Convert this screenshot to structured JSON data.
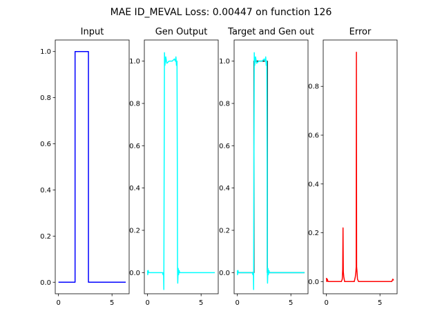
{
  "figure": {
    "suptitle": "MAE ID_MEVAL Loss: 0.00447 on function 126"
  },
  "chart_data": [
    {
      "type": "line",
      "title": "Input",
      "xlim": [
        -0.3,
        6.6
      ],
      "ylim": [
        -0.05,
        1.05
      ],
      "xticks": [
        0,
        5
      ],
      "yticks": [
        0.0,
        0.2,
        0.4,
        0.6,
        0.8,
        1.0
      ],
      "ytick_labels": [
        "0.0",
        "0.2",
        "0.4",
        "0.6",
        "0.8",
        "1.0"
      ],
      "series": [
        {
          "color": "#0000ff",
          "x": [
            0,
            1.55,
            1.55,
            2.8,
            2.8,
            6.28
          ],
          "y": [
            0,
            0,
            1,
            1,
            0,
            0
          ]
        }
      ]
    },
    {
      "type": "line",
      "title": "Gen Output",
      "xlim": [
        -0.3,
        6.6
      ],
      "ylim": [
        -0.1,
        1.1
      ],
      "xticks": [
        0,
        5
      ],
      "yticks": [
        0.0,
        0.2,
        0.4,
        0.6,
        0.8,
        1.0
      ],
      "ytick_labels": [
        "0.0",
        "0.2",
        "0.4",
        "0.6",
        "0.8",
        "1.0"
      ],
      "series": [
        {
          "color": "#00ffff",
          "x": [
            0,
            0.02,
            0.06,
            0.1,
            1.4,
            1.45,
            1.5,
            1.52,
            1.55,
            1.58,
            1.62,
            1.7,
            1.8,
            2.0,
            2.3,
            2.5,
            2.6,
            2.65,
            2.7,
            2.75,
            2.78,
            2.8,
            2.82,
            2.86,
            2.9,
            2.95,
            3.0,
            3.5,
            6.28
          ],
          "y": [
            0.01,
            -0.01,
            0.01,
            0.0,
            0.0,
            -0.01,
            0.0,
            -0.08,
            0.5,
            1.04,
            0.98,
            1.02,
            0.99,
            1.0,
            1.0,
            1.01,
            1.0,
            1.02,
            0.98,
            1.0,
            0.5,
            0.02,
            -0.05,
            0.02,
            -0.01,
            0.01,
            0.0,
            0.0,
            0.0
          ]
        }
      ]
    },
    {
      "type": "line",
      "title": "Target and Gen out",
      "xlim": [
        -0.3,
        6.6
      ],
      "ylim": [
        -0.1,
        1.1
      ],
      "xticks": [
        0,
        5
      ],
      "yticks": [
        0.0,
        0.2,
        0.4,
        0.6,
        0.8,
        1.0
      ],
      "ytick_labels": [
        "0.0",
        "0.2",
        "0.4",
        "0.6",
        "0.8",
        "1.0"
      ],
      "series": [
        {
          "color": "#000000",
          "x": [
            0,
            1.55,
            1.55,
            2.8,
            2.8,
            6.28
          ],
          "y": [
            0,
            0,
            1,
            1,
            0,
            0
          ]
        },
        {
          "color": "#00ffff",
          "x": [
            0,
            0.02,
            0.06,
            0.1,
            1.4,
            1.45,
            1.5,
            1.52,
            1.55,
            1.58,
            1.62,
            1.7,
            1.8,
            2.0,
            2.3,
            2.5,
            2.6,
            2.65,
            2.7,
            2.75,
            2.78,
            2.8,
            2.82,
            2.86,
            2.9,
            2.95,
            3.0,
            3.5,
            6.28
          ],
          "y": [
            0.01,
            -0.01,
            0.01,
            0.0,
            0.0,
            -0.01,
            0.0,
            -0.08,
            0.5,
            1.04,
            0.98,
            1.02,
            0.99,
            1.0,
            1.0,
            1.01,
            1.0,
            1.02,
            0.98,
            1.0,
            0.5,
            0.02,
            -0.05,
            0.02,
            -0.01,
            0.01,
            0.0,
            0.0,
            0.0
          ]
        }
      ]
    },
    {
      "type": "line",
      "title": "Error",
      "xlim": [
        -0.3,
        6.6
      ],
      "ylim": [
        -0.05,
        0.99
      ],
      "xticks": [
        0,
        5
      ],
      "yticks": [
        0.0,
        0.2,
        0.4,
        0.6,
        0.8
      ],
      "ytick_labels": [
        "0.0",
        "0.2",
        "0.4",
        "0.6",
        "0.8"
      ],
      "series": [
        {
          "color": "#ff0000",
          "x": [
            0,
            0.03,
            0.08,
            0.15,
            1.4,
            1.48,
            1.52,
            1.55,
            1.58,
            1.62,
            1.7,
            2.6,
            2.7,
            2.75,
            2.78,
            2.8,
            2.82,
            2.86,
            2.9,
            3.0,
            6.1,
            6.2,
            6.28
          ],
          "y": [
            0.015,
            0.0,
            0.01,
            0.0,
            0.0,
            0.01,
            0.05,
            0.22,
            0.04,
            0.02,
            0.0,
            0.0,
            0.02,
            0.04,
            0.06,
            0.94,
            0.06,
            0.04,
            0.01,
            0.0,
            0.0,
            0.01,
            0.005
          ]
        }
      ]
    }
  ]
}
